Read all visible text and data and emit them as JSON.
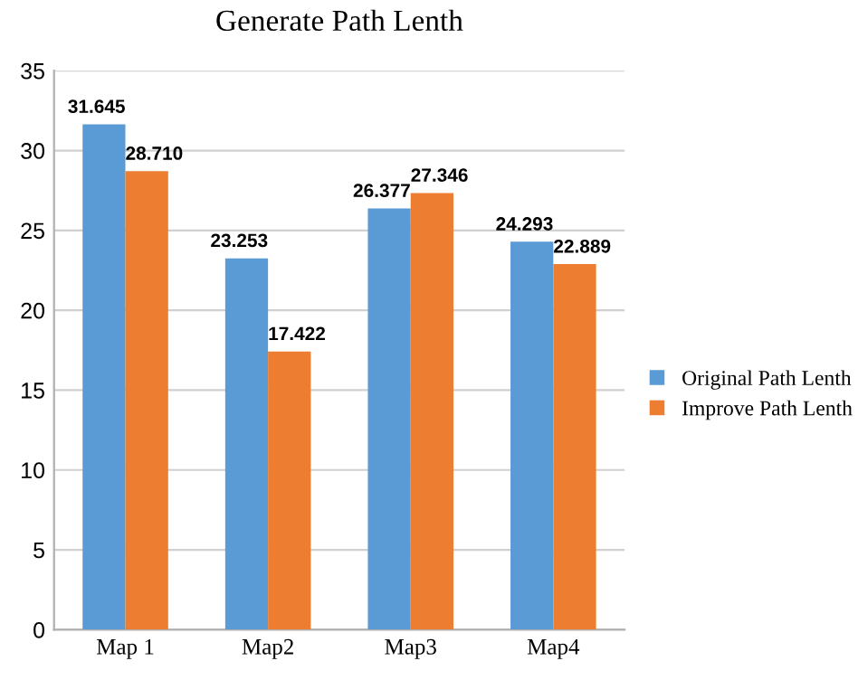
{
  "chart_data": {
    "type": "bar",
    "title": "Generate Path Lenth",
    "categories": [
      "Map 1",
      "Map2",
      "Map3",
      "Map4"
    ],
    "series": [
      {
        "name": "Original Path Lenth",
        "color": "#5b9bd5",
        "values": [
          31.645,
          23.253,
          26.377,
          24.293
        ],
        "value_labels": [
          "31.645",
          "23.253",
          "26.377",
          "24.293"
        ]
      },
      {
        "name": "Improve Path Lenth",
        "color": "#ed7d31",
        "values": [
          28.71,
          17.422,
          27.346,
          22.889
        ],
        "value_labels": [
          "28.710",
          "17.422",
          "27.346",
          "22.889"
        ]
      }
    ],
    "ylim": [
      0,
      35
    ],
    "yticks": [
      0,
      5,
      10,
      15,
      20,
      25,
      30,
      35
    ],
    "grid": "y",
    "legend": "right"
  }
}
